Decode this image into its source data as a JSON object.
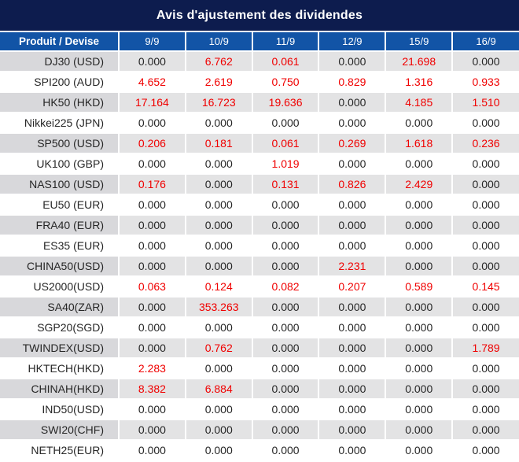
{
  "title": "Avis d'ajustement des dividendes",
  "colors": {
    "title_bg": "#0d1c4e",
    "header_bg": "#1254a6",
    "alt_bg": "#e3e3e4",
    "alt_label_bg": "#d8d8db",
    "red": "#f00000",
    "text": "#262626"
  },
  "table": {
    "header": [
      "Produit / Devise",
      "9/9",
      "10/9",
      "11/9",
      "12/9",
      "15/9",
      "16/9"
    ],
    "rows": [
      {
        "label": "DJ30 (USD)",
        "values": [
          "0.000",
          "6.762",
          "0.061",
          "0.000",
          "21.698",
          "0.000"
        ],
        "red": [
          false,
          true,
          true,
          false,
          true,
          false
        ]
      },
      {
        "label": "SPI200 (AUD)",
        "values": [
          "4.652",
          "2.619",
          "0.750",
          "0.829",
          "1.316",
          "0.933"
        ],
        "red": [
          true,
          true,
          true,
          true,
          true,
          true
        ]
      },
      {
        "label": "HK50 (HKD)",
        "values": [
          "17.164",
          "16.723",
          "19.636",
          "0.000",
          "4.185",
          "1.510"
        ],
        "red": [
          true,
          true,
          true,
          false,
          true,
          true
        ]
      },
      {
        "label": "Nikkei225 (JPN)",
        "values": [
          "0.000",
          "0.000",
          "0.000",
          "0.000",
          "0.000",
          "0.000"
        ],
        "red": [
          false,
          false,
          false,
          false,
          false,
          false
        ]
      },
      {
        "label": "SP500 (USD)",
        "values": [
          "0.206",
          "0.181",
          "0.061",
          "0.269",
          "1.618",
          "0.236"
        ],
        "red": [
          true,
          true,
          true,
          true,
          true,
          true
        ]
      },
      {
        "label": "UK100 (GBP)",
        "values": [
          "0.000",
          "0.000",
          "1.019",
          "0.000",
          "0.000",
          "0.000"
        ],
        "red": [
          false,
          false,
          true,
          false,
          false,
          false
        ]
      },
      {
        "label": "NAS100 (USD)",
        "values": [
          "0.176",
          "0.000",
          "0.131",
          "0.826",
          "2.429",
          "0.000"
        ],
        "red": [
          true,
          false,
          true,
          true,
          true,
          false
        ]
      },
      {
        "label": "EU50 (EUR)",
        "values": [
          "0.000",
          "0.000",
          "0.000",
          "0.000",
          "0.000",
          "0.000"
        ],
        "red": [
          false,
          false,
          false,
          false,
          false,
          false
        ]
      },
      {
        "label": "FRA40 (EUR)",
        "values": [
          "0.000",
          "0.000",
          "0.000",
          "0.000",
          "0.000",
          "0.000"
        ],
        "red": [
          false,
          false,
          false,
          false,
          false,
          false
        ]
      },
      {
        "label": "ES35 (EUR)",
        "values": [
          "0.000",
          "0.000",
          "0.000",
          "0.000",
          "0.000",
          "0.000"
        ],
        "red": [
          false,
          false,
          false,
          false,
          false,
          false
        ]
      },
      {
        "label": "CHINA50(USD)",
        "values": [
          "0.000",
          "0.000",
          "0.000",
          "2.231",
          "0.000",
          "0.000"
        ],
        "red": [
          false,
          false,
          false,
          true,
          false,
          false
        ]
      },
      {
        "label": "US2000(USD)",
        "values": [
          "0.063",
          "0.124",
          "0.082",
          "0.207",
          "0.589",
          "0.145"
        ],
        "red": [
          true,
          true,
          true,
          true,
          true,
          true
        ]
      },
      {
        "label": "SA40(ZAR)",
        "values": [
          "0.000",
          "353.263",
          "0.000",
          "0.000",
          "0.000",
          "0.000"
        ],
        "red": [
          false,
          true,
          false,
          false,
          false,
          false
        ]
      },
      {
        "label": "SGP20(SGD)",
        "values": [
          "0.000",
          "0.000",
          "0.000",
          "0.000",
          "0.000",
          "0.000"
        ],
        "red": [
          false,
          false,
          false,
          false,
          false,
          false
        ]
      },
      {
        "label": "TWINDEX(USD)",
        "values": [
          "0.000",
          "0.762",
          "0.000",
          "0.000",
          "0.000",
          "1.789"
        ],
        "red": [
          false,
          true,
          false,
          false,
          false,
          true
        ]
      },
      {
        "label": "HKTECH(HKD)",
        "values": [
          "2.283",
          "0.000",
          "0.000",
          "0.000",
          "0.000",
          "0.000"
        ],
        "red": [
          true,
          false,
          false,
          false,
          false,
          false
        ]
      },
      {
        "label": "CHINAH(HKD)",
        "values": [
          "8.382",
          "6.884",
          "0.000",
          "0.000",
          "0.000",
          "0.000"
        ],
        "red": [
          true,
          true,
          false,
          false,
          false,
          false
        ]
      },
      {
        "label": "IND50(USD)",
        "values": [
          "0.000",
          "0.000",
          "0.000",
          "0.000",
          "0.000",
          "0.000"
        ],
        "red": [
          false,
          false,
          false,
          false,
          false,
          false
        ]
      },
      {
        "label": "SWI20(CHF)",
        "values": [
          "0.000",
          "0.000",
          "0.000",
          "0.000",
          "0.000",
          "0.000"
        ],
        "red": [
          false,
          false,
          false,
          false,
          false,
          false
        ]
      },
      {
        "label": "NETH25(EUR)",
        "values": [
          "0.000",
          "0.000",
          "0.000",
          "0.000",
          "0.000",
          "0.000"
        ],
        "red": [
          false,
          false,
          false,
          false,
          false,
          false
        ]
      }
    ]
  }
}
